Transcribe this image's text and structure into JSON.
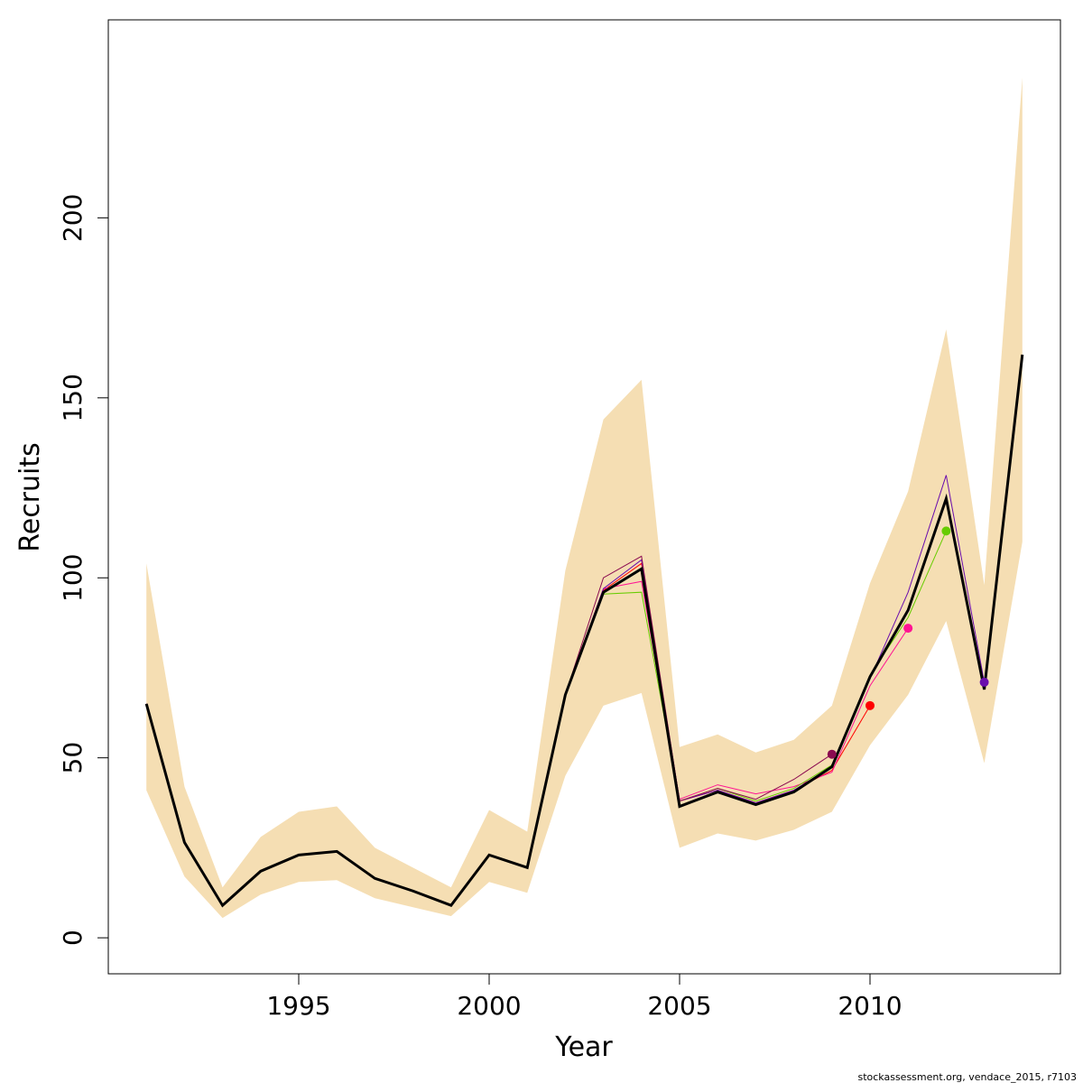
{
  "chart_data": {
    "type": "line",
    "xlabel": "Year",
    "ylabel": "Recruits",
    "xlim": [
      1990.0,
      2015.0
    ],
    "ylim": [
      -10,
      255
    ],
    "x_ticks": [
      1995,
      2000,
      2005,
      2010
    ],
    "y_ticks": [
      0,
      50,
      100,
      150,
      200
    ],
    "grid": false,
    "legend": "none",
    "footer": "stockassessment.org, vendace_2015, r7103",
    "colors": {
      "band": "#f5deb3",
      "main": "#000000"
    },
    "band": {
      "x": [
        1991,
        1992,
        1993,
        1994,
        1995,
        1996,
        1997,
        1998,
        1999,
        2000,
        2001,
        2002,
        2003,
        2004,
        2005,
        2006,
        2007,
        2008,
        2009,
        2010,
        2011,
        2012,
        2013,
        2014
      ],
      "lower": [
        41,
        17,
        5.5,
        12,
        15.5,
        16,
        11,
        8.5,
        6,
        15.5,
        12.5,
        45,
        64.5,
        68,
        25,
        29,
        27,
        30,
        35,
        53.5,
        67.5,
        88,
        48.5,
        110
      ],
      "upper": [
        104,
        42,
        14,
        28,
        35,
        36.5,
        25,
        19.5,
        14,
        35.5,
        29.5,
        102,
        144,
        155,
        53,
        56.5,
        51.5,
        55,
        64.5,
        98.5,
        124,
        169,
        98,
        239
      ]
    },
    "main_series": {
      "x": [
        1991,
        1992,
        1993,
        1994,
        1995,
        1996,
        1997,
        1998,
        1999,
        2000,
        2001,
        2002,
        2003,
        2004,
        2005,
        2006,
        2007,
        2008,
        2009,
        2010,
        2011,
        2012,
        2013,
        2014
      ],
      "y": [
        65,
        26.5,
        9,
        18.5,
        23,
        24,
        16.5,
        13,
        9,
        23,
        19.5,
        67.5,
        96,
        102.5,
        36.5,
        40.5,
        37,
        40.5,
        47.5,
        72.5,
        91,
        122,
        69,
        162
      ]
    },
    "retro_series": [
      {
        "color": "#ff0000",
        "x": [
          1991,
          1992,
          1993,
          1994,
          1995,
          1996,
          1997,
          1998,
          1999,
          2000,
          2001,
          2002,
          2003,
          2004,
          2005,
          2006,
          2007,
          2008,
          2009,
          2010
        ],
        "y": [
          65,
          26.5,
          9,
          18.5,
          23,
          24,
          16.5,
          13,
          9,
          23,
          19.5,
          67.5,
          96.5,
          104,
          38,
          41,
          37.5,
          41,
          46.5,
          64.5
        ]
      },
      {
        "color": "#ff1493",
        "x": [
          1991,
          1992,
          1993,
          1994,
          1995,
          1996,
          1997,
          1998,
          1999,
          2000,
          2001,
          2002,
          2003,
          2004,
          2005,
          2006,
          2007,
          2008,
          2009,
          2010,
          2011
        ],
        "y": [
          65,
          26.5,
          9,
          18.5,
          23,
          24,
          16.5,
          13,
          9,
          23,
          19.5,
          67.5,
          97,
          99,
          38.5,
          42.5,
          40,
          42,
          46,
          70,
          86
        ]
      },
      {
        "color": "#66cc00",
        "x": [
          1991,
          1992,
          1993,
          1994,
          1995,
          1996,
          1997,
          1998,
          1999,
          2000,
          2001,
          2002,
          2003,
          2004,
          2005,
          2006,
          2007,
          2008,
          2009,
          2010,
          2011,
          2012
        ],
        "y": [
          65,
          26.5,
          9,
          18.5,
          23,
          24,
          16.5,
          13,
          9,
          23,
          19.5,
          67.5,
          95.5,
          96,
          38,
          41.5,
          38,
          41.5,
          48,
          73,
          89,
          113
        ]
      },
      {
        "color": "#6a0dad",
        "x": [
          1991,
          1992,
          1993,
          1994,
          1995,
          1996,
          1997,
          1998,
          1999,
          2000,
          2001,
          2002,
          2003,
          2004,
          2005,
          2006,
          2007,
          2008,
          2009,
          2010,
          2011,
          2012,
          2013
        ],
        "y": [
          65,
          26.5,
          9,
          18.5,
          23,
          24,
          16.5,
          13,
          9,
          23,
          19.5,
          67.5,
          97,
          105,
          38,
          41,
          37.5,
          41,
          47.5,
          72,
          96,
          128.5,
          71
        ]
      },
      {
        "color": "#8b0a50",
        "x": [
          1991,
          1992,
          1993,
          1994,
          1995,
          1996,
          1997,
          1998,
          1999,
          2000,
          2001,
          2002,
          2003,
          2004,
          2005,
          2006,
          2007,
          2008,
          2009
        ],
        "y": [
          65,
          26.5,
          9,
          18.5,
          23,
          24,
          16.5,
          13,
          9,
          23,
          19.5,
          67.5,
          100,
          106,
          38,
          41.5,
          38.5,
          44,
          51
        ]
      }
    ],
    "endpoints": [
      {
        "x": 2009,
        "y": 51,
        "color": "#8b0a50"
      },
      {
        "x": 2010,
        "y": 64.5,
        "color": "#ff0000"
      },
      {
        "x": 2011,
        "y": 86,
        "color": "#ff1493"
      },
      {
        "x": 2012,
        "y": 113,
        "color": "#66cc00"
      },
      {
        "x": 2013,
        "y": 71,
        "color": "#6a0dad"
      }
    ]
  }
}
